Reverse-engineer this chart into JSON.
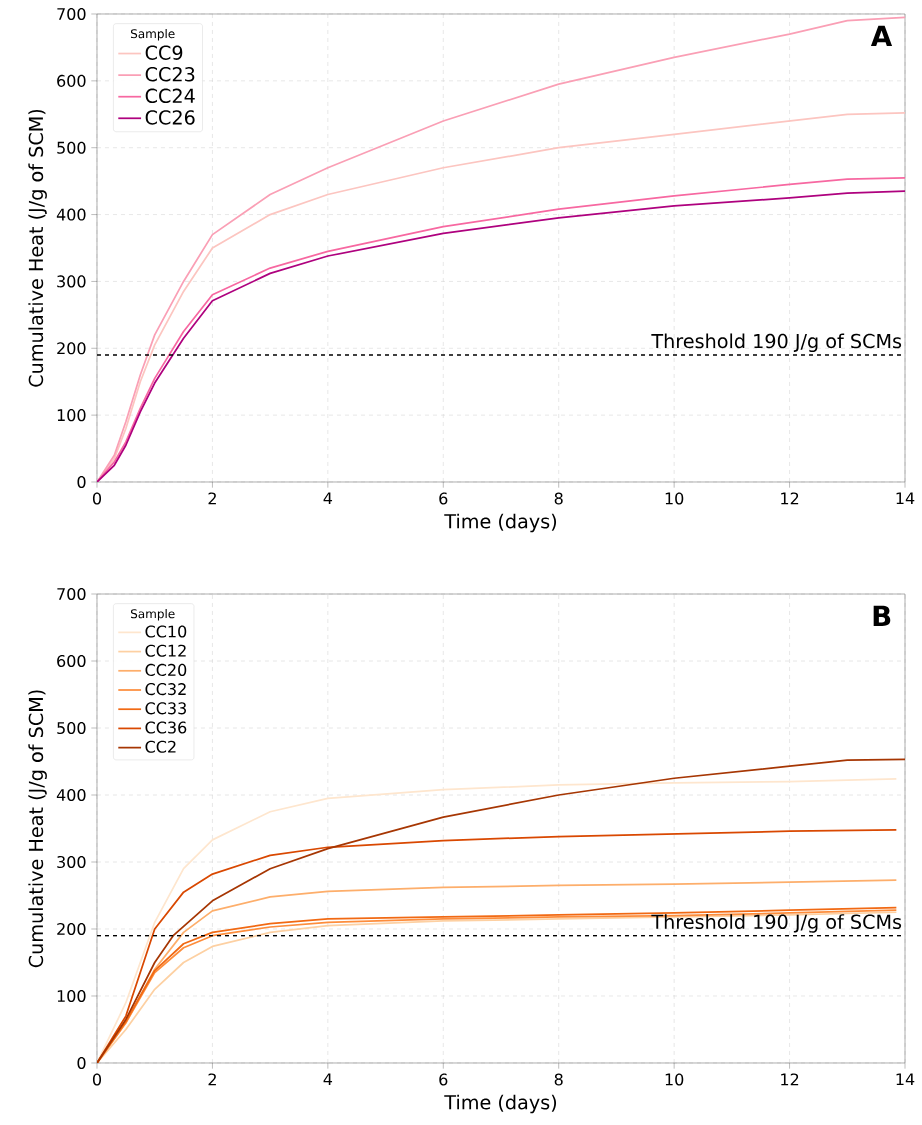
{
  "chart_data": [
    {
      "type": "line",
      "xlabel": "Time (days)",
      "ylabel": "Cumulative Heat (J/g of SCM)",
      "legend_title": "Sample",
      "legend": "top left",
      "grid": true,
      "xlim": [
        0,
        14
      ],
      "ylim": [
        0,
        700
      ],
      "xticks": [
        0,
        2,
        4,
        6,
        8,
        10,
        12,
        14
      ],
      "yticks": [
        0,
        100,
        200,
        300,
        400,
        500,
        600,
        700
      ],
      "annotations": [
        "A"
      ],
      "ref_lines": [
        {
          "axis": "y",
          "value": 190,
          "label": "Threshold 190 J/g of SCMs",
          "color": "#000000",
          "line_style": "dashed"
        }
      ],
      "x": [
        0,
        0.3,
        0.5,
        0.75,
        1,
        1.5,
        2,
        3,
        4,
        6,
        8,
        10,
        12,
        13,
        14
      ],
      "series": [
        {
          "name": "CC9",
          "color": "#fcc5c0",
          "values": [
            0,
            35,
            80,
            150,
            205,
            285,
            350,
            400,
            430,
            470,
            500,
            520,
            540,
            550,
            552
          ]
        },
        {
          "name": "CC23",
          "color": "#fa9fb5",
          "values": [
            0,
            40,
            90,
            160,
            220,
            300,
            370,
            430,
            470,
            540,
            595,
            635,
            670,
            690,
            695
          ]
        },
        {
          "name": "CC24",
          "color": "#f768a1",
          "values": [
            0,
            30,
            60,
            110,
            155,
            225,
            280,
            320,
            345,
            382,
            408,
            428,
            445,
            453,
            455
          ]
        },
        {
          "name": "CC26",
          "color": "#ae017e",
          "values": [
            0,
            25,
            55,
            105,
            148,
            215,
            271,
            312,
            338,
            372,
            395,
            413,
            425,
            432,
            435
          ]
        }
      ]
    },
    {
      "type": "line",
      "xlabel": "Time (days)",
      "ylabel": "Cumulative Heat (J/g of SCM)",
      "legend_title": "Sample",
      "legend": "top left",
      "grid": true,
      "xlim": [
        0,
        14
      ],
      "ylim": [
        0,
        700
      ],
      "xticks": [
        0,
        2,
        4,
        6,
        8,
        10,
        12,
        14
      ],
      "yticks": [
        0,
        100,
        200,
        300,
        400,
        500,
        600,
        700
      ],
      "annotations": [
        "B"
      ],
      "ref_lines": [
        {
          "axis": "y",
          "value": 190,
          "label": "Threshold 190 J/g of SCMs",
          "color": "#000000",
          "line_style": "dashed"
        }
      ],
      "x": [
        0,
        0.5,
        1,
        1.5,
        2,
        3,
        4,
        6,
        8,
        10,
        12,
        13.85
      ],
      "series": [
        {
          "name": "CC10",
          "color": "#fee6ce",
          "values": [
            0,
            90,
            210,
            290,
            333,
            375,
            395,
            408,
            415,
            418,
            420,
            424
          ]
        },
        {
          "name": "CC12",
          "color": "#fdd0a2",
          "values": [
            0,
            50,
            110,
            150,
            174,
            195,
            205,
            212,
            215,
            218,
            221,
            225
          ]
        },
        {
          "name": "CC20",
          "color": "#fdae6b",
          "values": [
            0,
            60,
            140,
            195,
            227,
            248,
            256,
            262,
            265,
            267,
            270,
            273
          ]
        },
        {
          "name": "CC32",
          "color": "#fd8d3c",
          "values": [
            0,
            60,
            135,
            172,
            190,
            203,
            210,
            215,
            218,
            220,
            224,
            228
          ]
        },
        {
          "name": "CC33",
          "color": "#f16913",
          "values": [
            0,
            62,
            138,
            178,
            195,
            208,
            215,
            218,
            221,
            224,
            228,
            232
          ]
        },
        {
          "name": "CC36",
          "color": "#d94801",
          "values": [
            0,
            70,
            200,
            255,
            282,
            310,
            322,
            332,
            338,
            342,
            346,
            348
          ]
        },
        {
          "name": "CC2",
          "color": "#a63603",
          "x": [
            0,
            0.5,
            1,
            1.32,
            2,
            3,
            4,
            6,
            8,
            10,
            12,
            13,
            14
          ],
          "values": [
            0,
            65,
            150,
            190,
            242,
            290,
            320,
            367,
            400,
            425,
            443,
            452,
            453
          ]
        }
      ]
    }
  ]
}
